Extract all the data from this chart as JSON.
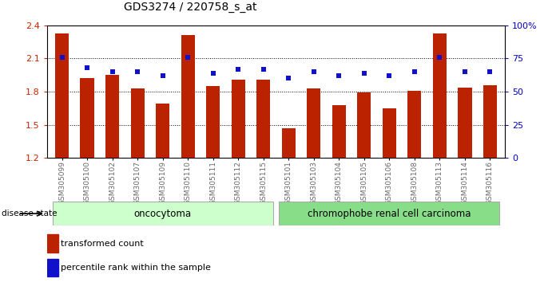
{
  "title": "GDS3274 / 220758_s_at",
  "samples": [
    "GSM305099",
    "GSM305100",
    "GSM305102",
    "GSM305107",
    "GSM305109",
    "GSM305110",
    "GSM305111",
    "GSM305112",
    "GSM305115",
    "GSM305101",
    "GSM305103",
    "GSM305104",
    "GSM305105",
    "GSM305106",
    "GSM305108",
    "GSM305113",
    "GSM305114",
    "GSM305116"
  ],
  "transformed_count": [
    2.33,
    1.92,
    1.95,
    1.83,
    1.69,
    2.31,
    1.85,
    1.91,
    1.91,
    1.47,
    1.83,
    1.68,
    1.79,
    1.65,
    1.81,
    2.33,
    1.84,
    1.86
  ],
  "percentile_rank": [
    76,
    68,
    65,
    65,
    62,
    76,
    64,
    67,
    67,
    60,
    65,
    62,
    64,
    62,
    65,
    76,
    65,
    65
  ],
  "ylim_left": [
    1.2,
    2.4
  ],
  "ylim_right": [
    0,
    100
  ],
  "yticks_left": [
    1.2,
    1.5,
    1.8,
    2.1,
    2.4
  ],
  "yticks_right": [
    0,
    25,
    50,
    75,
    100
  ],
  "ytick_labels_right": [
    "0",
    "25",
    "50",
    "75",
    "100%"
  ],
  "bar_color": "#bb2200",
  "dot_color": "#1111cc",
  "oncocytoma_count": 9,
  "carcinoma_count": 9,
  "oncocytoma_label": "oncocytoma",
  "carcinoma_label": "chromophobe renal cell carcinoma",
  "disease_state_label": "disease state",
  "legend_bar_label": "transformed count",
  "legend_dot_label": "percentile rank within the sample",
  "bg_color": "#ffffff",
  "plot_bg_color": "#ffffff",
  "group_bg_onco": "#ccffcc",
  "group_bg_carci": "#88dd88",
  "tick_label_color_left": "#cc2200",
  "tick_label_color_right": "#0000cc",
  "dotted_line_color": "#000000",
  "xtick_label_color": "#666666",
  "bar_width": 0.55
}
